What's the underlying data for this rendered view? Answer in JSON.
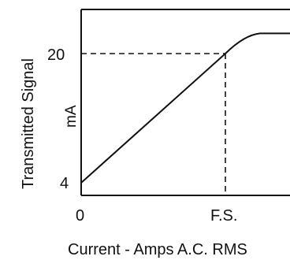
{
  "chart_data": {
    "type": "line",
    "title": "",
    "xlabel": "Current - Amps A.C. RMS",
    "ylabel": "Transmitted Signal",
    "yunit": "mA",
    "x_tick_labels": [
      "0",
      "F.S."
    ],
    "y_tick_labels": [
      "20",
      "4"
    ],
    "reference": {
      "x_label": "F.S.",
      "y_value": 20,
      "style": "dashed"
    },
    "series": [
      {
        "values_description": "linear rise from 4 mA at 0 to 20 mA at F.S., then saturates",
        "points": [
          {
            "x": "0",
            "y": 4
          },
          {
            "x": "F.S.",
            "y": 20
          },
          {
            "x": "saturation",
            "y": 22.5
          }
        ]
      }
    ],
    "colors": {
      "line": "#111111",
      "axis": "#111111",
      "dashed": "#111111"
    }
  }
}
